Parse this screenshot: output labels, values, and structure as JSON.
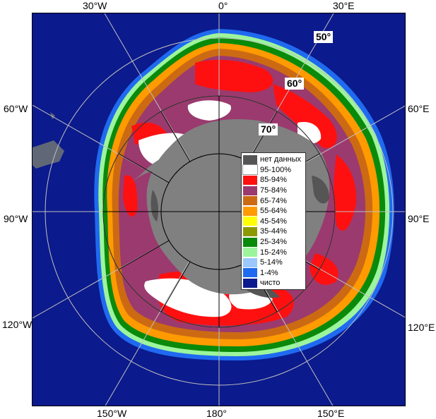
{
  "map": {
    "top_labels": [
      "30°W",
      "0°",
      "30°E"
    ],
    "left_labels": [
      "60°W",
      "90°W",
      "120°W"
    ],
    "right_labels": [
      "60°E",
      "90°E",
      "120°E"
    ],
    "bottom_labels": [
      "150°W",
      "180°",
      "150°E"
    ],
    "lat_labels": [
      "50°",
      "60°",
      "70°"
    ]
  },
  "legend": {
    "items": [
      {
        "label": "нет данных",
        "color": "#555555"
      },
      {
        "label": "95-100%",
        "color": "#ffffff"
      },
      {
        "label": "85-94%",
        "color": "#ff1010"
      },
      {
        "label": "75-84%",
        "color": "#9b3a6e"
      },
      {
        "label": "65-74%",
        "color": "#cc6a14"
      },
      {
        "label": "55-64%",
        "color": "#ff9a00"
      },
      {
        "label": "45-54%",
        "color": "#ffff00"
      },
      {
        "label": "35-44%",
        "color": "#8c9a00"
      },
      {
        "label": "25-34%",
        "color": "#0a8a0a"
      },
      {
        "label": "15-24%",
        "color": "#9cf59c"
      },
      {
        "label": "5-14%",
        "color": "#9ac8ff"
      },
      {
        "label": "1-4%",
        "color": "#1f6af0"
      },
      {
        "label": "чисто",
        "color": "#0b1a8c"
      }
    ]
  },
  "colors": {
    "ocean": "#0b1a8c",
    "land": "#808080",
    "no_data": "#555555"
  }
}
